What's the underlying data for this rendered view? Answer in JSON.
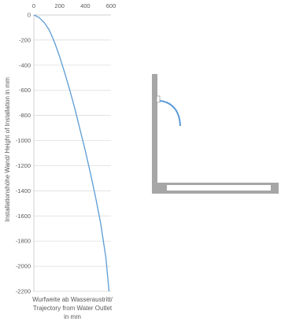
{
  "chart_data": {
    "type": "line",
    "title": "",
    "xlabel_lines": [
      "Wurfweite ab Wasseraustritt/",
      "Trajectory from Water Outlet",
      "in mm"
    ],
    "ylabel": "Installationshöhe Wand/ Height of Installation in mm",
    "xlim": [
      0,
      600
    ],
    "ylim": [
      -2200,
      0
    ],
    "x_ticks": [
      0,
      200,
      400,
      600
    ],
    "y_ticks": [
      0,
      -200,
      -400,
      -600,
      -800,
      -1000,
      -1200,
      -1400,
      -1600,
      -1800,
      -2000,
      -2200
    ],
    "grid": "horizontal",
    "x_axis_position": "top",
    "series": [
      {
        "color": "#5b9bd5",
        "x": [
          0,
          40,
          80,
          120,
          160,
          200,
          240,
          280,
          320,
          360,
          400,
          440,
          480,
          520,
          560,
          585
        ],
        "y": [
          0,
          -20,
          -60,
          -120,
          -215,
          -330,
          -460,
          -600,
          -750,
          -915,
          -1080,
          -1260,
          -1450,
          -1660,
          -1930,
          -2200
        ]
      }
    ]
  },
  "diagram": {
    "wall_color": "#a6a6a6",
    "basin_color": "#ffffff",
    "outlet_color": "#ffffff",
    "stream_color": "#5b9bd5"
  }
}
